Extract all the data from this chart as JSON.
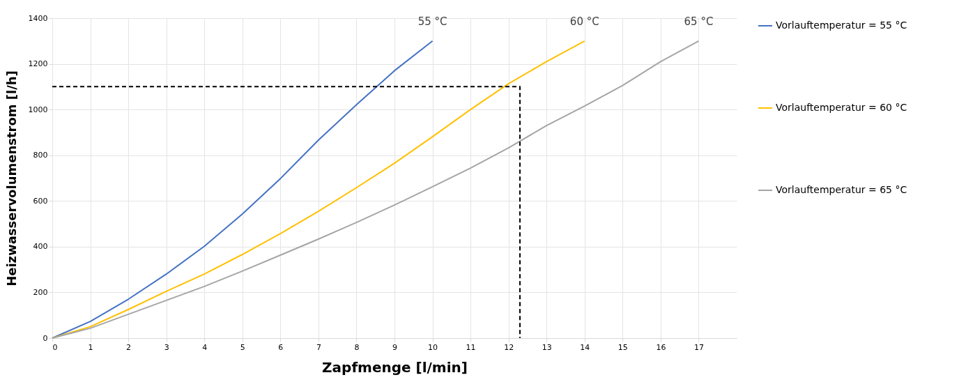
{
  "chart_data": {
    "type": "line",
    "xlabel": "Zapfmenge [l/min]",
    "ylabel": "Heizwasservolumenstrom [l/h]",
    "xlim": [
      0,
      18
    ],
    "xticks": [
      0,
      1,
      2,
      3,
      4,
      5,
      6,
      7,
      8,
      9,
      10,
      11,
      12,
      13,
      14,
      15,
      16,
      17
    ],
    "ylim": [
      0,
      1400
    ],
    "yticks": [
      0,
      200,
      400,
      600,
      800,
      1000,
      1200,
      1400
    ],
    "grid": true,
    "legend": "right",
    "line_style": "solid",
    "series": [
      {
        "name": "Vorlauftemperatur = 55 °C",
        "color": "#4472c4",
        "x": [
          0,
          1,
          2,
          3,
          4,
          5,
          6,
          7,
          8,
          9,
          10
        ],
        "values": [
          0,
          73,
          170,
          280,
          402,
          543,
          698,
          866,
          1021,
          1170,
          1300
        ]
      },
      {
        "name": "Vorlauftemperatur = 60 °C",
        "color": "#ffc000",
        "x": [
          0,
          1,
          2,
          3,
          4,
          5,
          6,
          7,
          8,
          9,
          10,
          11,
          12,
          13,
          14
        ],
        "values": [
          0,
          50,
          125,
          205,
          280,
          366,
          457,
          555,
          658,
          765,
          881,
          1000,
          1113,
          1210,
          1300
        ]
      },
      {
        "name": "Vorlauftemperatur = 65 °C",
        "color": "#a5a5a5",
        "x": [
          0,
          1,
          2,
          3,
          4,
          5,
          6,
          7,
          8,
          9,
          10,
          11,
          12,
          13,
          14,
          15,
          16,
          17
        ],
        "values": [
          0,
          43,
          104,
          165,
          226,
          293,
          363,
          433,
          506,
          582,
          662,
          744,
          832,
          930,
          1015,
          1105,
          1210,
          1300
        ]
      },
      {
        "color": "#000000",
        "line_style": "dashed",
        "x": [
          0,
          12.3,
          12.3
        ],
        "values": [
          1100,
          1100,
          0
        ]
      }
    ],
    "annotations": [
      {
        "text": "55 °C",
        "x": 10,
        "y": 1300
      },
      {
        "text": "60 °C",
        "x": 14,
        "y": 1300
      },
      {
        "text": "65 °C",
        "x": 17,
        "y": 1300
      }
    ]
  }
}
